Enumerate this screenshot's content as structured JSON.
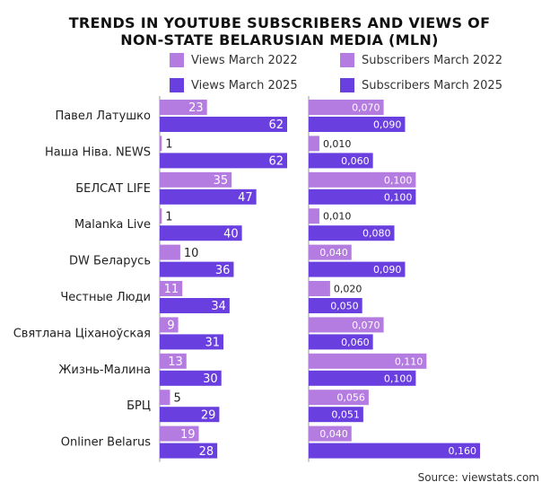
{
  "title_line1": "TRENDS IN YOUTUBE SUBSCRIBERS AND VIEWS OF",
  "title_line2": "NON-STATE BELARUSIAN MEDIA (MLN)",
  "legend": {
    "views_2022": "Views March 2022",
    "views_2025": "Views March 2025",
    "subs_2022": "Subscribers March 2022",
    "subs_2025": "Subscribers March 2025"
  },
  "colors": {
    "light": "#b47be0",
    "dark": "#6a3fe0",
    "axis": "#999999"
  },
  "source": "Source: viewstats.com",
  "chart_data": {
    "type": "bar",
    "orientation": "horizontal",
    "title": "TRENDS IN YOUTUBE SUBSCRIBERS AND VIEWS OF NON-STATE BELARUSIAN MEDIA (MLN)",
    "categories": [
      "Павел Латушко",
      "Наша Ніва. NEWS",
      "БЕЛСАТ LIFE",
      "Malanka Live",
      "DW Беларусь",
      "Честные Люди",
      "Святлана Ціханоўская",
      "Жизнь-Малина",
      "БРЦ",
      "Onliner Belarus"
    ],
    "views": {
      "max": 62,
      "series": [
        {
          "name": "Views March 2022",
          "values": [
            23,
            1,
            35,
            1,
            10,
            11,
            9,
            13,
            5,
            19
          ],
          "labels": [
            "23",
            "1",
            "35",
            "1",
            "10",
            "11",
            "9",
            "13",
            "5",
            "19"
          ]
        },
        {
          "name": "Views March 2025",
          "values": [
            62,
            62,
            47,
            40,
            36,
            34,
            31,
            30,
            29,
            28
          ],
          "labels": [
            "62",
            "62",
            "47",
            "40",
            "36",
            "34",
            "31",
            "30",
            "29",
            "28"
          ]
        }
      ]
    },
    "subscribers": {
      "max": 0.16,
      "series": [
        {
          "name": "Subscribers March 2022",
          "values": [
            0.07,
            0.01,
            0.1,
            0.01,
            0.04,
            0.02,
            0.07,
            0.11,
            0.056,
            0.04
          ],
          "labels": [
            "0,070",
            "0,010",
            "0,100",
            "0,010",
            "0,040",
            "0,020",
            "0,070",
            "0,110",
            "0,056",
            "0,040"
          ]
        },
        {
          "name": "Subscribers March 2025",
          "values": [
            0.09,
            0.06,
            0.1,
            0.08,
            0.09,
            0.05,
            0.06,
            0.1,
            0.051,
            0.16
          ],
          "labels": [
            "0,090",
            "0,060",
            "0,100",
            "0,080",
            "0,090",
            "0,050",
            "0,060",
            "0,100",
            "0,051",
            "0,160"
          ]
        }
      ]
    },
    "grid": false,
    "legend_position": "top"
  }
}
